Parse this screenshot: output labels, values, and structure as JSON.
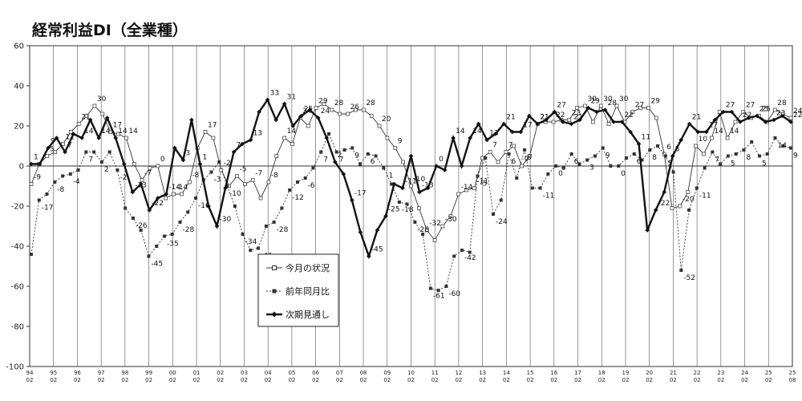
{
  "chart_data": {
    "type": "line",
    "title": "経常利益DI（全業種）",
    "ylim": [
      -100,
      60
    ],
    "yticks": [
      60,
      40,
      20,
      0,
      -20,
      -40,
      -60,
      -80,
      -100
    ],
    "x_tick_labels": [
      {
        "year": "94",
        "month": "02"
      },
      {
        "year": "95",
        "month": "02"
      },
      {
        "year": "96",
        "month": "02"
      },
      {
        "year": "97",
        "month": "02"
      },
      {
        "year": "98",
        "month": "02"
      },
      {
        "year": "99",
        "month": "02"
      },
      {
        "year": "00",
        "month": "02"
      },
      {
        "year": "01",
        "month": "02"
      },
      {
        "year": "02",
        "month": "02"
      },
      {
        "year": "03",
        "month": "02"
      },
      {
        "year": "04",
        "month": "02"
      },
      {
        "year": "05",
        "month": "02"
      },
      {
        "year": "06",
        "month": "02"
      },
      {
        "year": "07",
        "month": "02"
      },
      {
        "year": "08",
        "month": "02"
      },
      {
        "year": "09",
        "month": "02"
      },
      {
        "year": "10",
        "month": "02"
      },
      {
        "year": "11",
        "month": "02"
      },
      {
        "year": "12",
        "month": "02"
      },
      {
        "year": "13",
        "month": "02"
      },
      {
        "year": "14",
        "month": "02"
      },
      {
        "year": "15",
        "month": "02"
      },
      {
        "year": "16",
        "month": "02"
      },
      {
        "year": "17",
        "month": "02"
      },
      {
        "year": "18",
        "month": "02"
      },
      {
        "year": "19",
        "month": "02"
      },
      {
        "year": "20",
        "month": "02"
      },
      {
        "year": "21",
        "month": "02"
      },
      {
        "year": "22",
        "month": "02"
      },
      {
        "year": "23",
        "month": "02"
      },
      {
        "year": "24",
        "month": "02"
      },
      {
        "year": "25",
        "month": "02"
      },
      {
        "year": "25",
        "month": "08"
      }
    ],
    "grid": "vertical lines at each year",
    "legend": "center-bottom",
    "series": [
      {
        "name": "今月の状況",
        "style": "thin solid line, open square markers",
        "color": "#333333",
        "values": [
          -9,
          1,
          5,
          7,
          11,
          17,
          21,
          25,
          30,
          26,
          17,
          16,
          14,
          1,
          -7,
          -1,
          0,
          -16,
          -14,
          -14,
          -8,
          9,
          17,
          14,
          -2,
          -10,
          -5,
          -9,
          -7,
          -16,
          -8,
          5,
          14,
          11,
          24,
          20,
          29,
          31,
          28,
          26,
          26,
          28,
          28,
          25,
          20,
          14,
          9,
          2,
          -10,
          -21,
          -32,
          -37,
          -30,
          -25,
          -14,
          -12,
          -11,
          4,
          7,
          2,
          7,
          10,
          0,
          5,
          21,
          22,
          22,
          23,
          23,
          29,
          30,
          22,
          30,
          21,
          30,
          22,
          27,
          29,
          29,
          24,
          6,
          -21,
          -20,
          -13,
          10,
          6,
          14,
          27,
          14,
          22,
          27,
          24,
          25,
          22,
          28,
          26,
          24
        ]
      },
      {
        "name": "前年同月比",
        "style": "dotted line, filled square markers",
        "color": "#333333",
        "values": [
          -44,
          -17,
          -14,
          -8,
          -5,
          -4,
          -2,
          7,
          7,
          2,
          7,
          -2,
          -21,
          -26,
          -32,
          -45,
          -40,
          -35,
          -34,
          -28,
          -23,
          -16,
          -7,
          -3,
          2,
          -10,
          -20,
          -34,
          -42,
          -41,
          -30,
          -28,
          -21,
          -12,
          -8,
          -6,
          -1,
          7,
          16,
          7,
          8,
          9,
          1,
          6,
          5,
          -1,
          -9,
          -18,
          -19,
          -28,
          -34,
          -61,
          -62,
          -60,
          -45,
          -42,
          -43,
          -5,
          4,
          -24,
          -17,
          6,
          -6,
          8,
          -11,
          -11,
          -4,
          0,
          -1,
          6,
          1,
          3,
          5,
          9,
          0,
          0,
          4,
          6,
          3,
          8,
          10,
          5,
          -3,
          -52,
          -22,
          -11,
          -1,
          7,
          1,
          5,
          6,
          8,
          12,
          5,
          6,
          14,
          10,
          9
        ]
      },
      {
        "name": "次期見通し",
        "style": "thick solid line, filled diamond markers",
        "color": "#111111",
        "values": [
          1,
          1,
          9,
          14,
          7,
          16,
          14,
          23,
          14,
          24,
          14,
          1,
          -13,
          -9,
          -22,
          -16,
          -14,
          9,
          3,
          23,
          1,
          -20,
          -30,
          -11,
          7,
          11,
          13,
          27,
          33,
          23,
          31,
          20,
          25,
          28,
          24,
          14,
          2,
          -4,
          -17,
          -33,
          -45,
          -32,
          -25,
          -9,
          -11,
          5,
          -13,
          -11,
          0,
          -2,
          14,
          0,
          14,
          21,
          13,
          16,
          21,
          17,
          17,
          25,
          21,
          23,
          27,
          22,
          21,
          23,
          29,
          27,
          28,
          22,
          22,
          17,
          11,
          -32,
          -22,
          -13,
          5,
          13,
          21,
          17,
          17,
          23,
          27,
          27,
          22,
          24,
          25,
          22,
          23,
          25,
          22
        ]
      }
    ]
  }
}
